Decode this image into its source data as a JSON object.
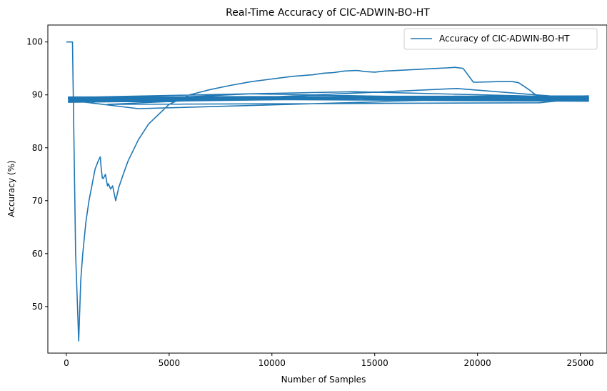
{
  "chart_data": {
    "type": "line",
    "title": "Real-Time Accuracy of CIC-ADWIN-BO-HT",
    "xlabel": "Number of Samples",
    "ylabel": "Accuracy (%)",
    "xlim": [
      -900,
      26300
    ],
    "ylim": [
      41.2,
      103.2
    ],
    "xticks": [
      0,
      5000,
      10000,
      15000,
      20000,
      25000
    ],
    "yticks": [
      50,
      60,
      70,
      80,
      90,
      100
    ],
    "grid": false,
    "legend": "top-right",
    "series": [
      {
        "name": "Accuracy of CIC-ADWIN-BO-HT",
        "color": "#1f77b4",
        "x": [
          0,
          250,
          300,
          450,
          600,
          700,
          800,
          950,
          1100,
          1250,
          1400,
          1550,
          1650,
          1700,
          1750,
          1800,
          1900,
          2000,
          2050,
          2150,
          2250,
          2400,
          2550,
          2750,
          3000,
          3500,
          4000,
          5000,
          6000,
          7000,
          8000,
          9000,
          10000,
          11000,
          12000,
          12500,
          13000,
          13500,
          14000,
          14200,
          14500,
          15000,
          15500,
          16000,
          16500,
          17000,
          17500,
          18000,
          18500,
          18900,
          19300,
          19800,
          20000,
          21000,
          21700,
          22000,
          22500,
          23000,
          23300,
          24000,
          25000,
          25400,
          19000,
          2000,
          23000,
          25400,
          100,
          3500,
          25400,
          100,
          9000,
          25400,
          100,
          14000,
          25400,
          100,
          25400,
          100,
          25400,
          100,
          25400,
          100,
          25400,
          100,
          25400
        ],
        "y": [
          100,
          100,
          100,
          60,
          43.5,
          55,
          60,
          66,
          70,
          73,
          76,
          77.5,
          78.3,
          76,
          74.3,
          74.2,
          75,
          72.8,
          73.2,
          72.2,
          72.8,
          70,
          72.5,
          74.8,
          77.5,
          81.5,
          84.5,
          88.2,
          90,
          91,
          91.8,
          92.5,
          93,
          93.5,
          93.8,
          94.1,
          94.2,
          94.5,
          94.6,
          94.6,
          94.4,
          94.3,
          94.5,
          94.6,
          94.7,
          94.8,
          94.9,
          95.0,
          95.1,
          95.2,
          95.0,
          92.4,
          92.4,
          92.5,
          92.5,
          92.3,
          91,
          89.5,
          89.2,
          89.2,
          89.1,
          89.2,
          91.2,
          88.2,
          88.5,
          89.4,
          89.0,
          87.4,
          89.8,
          88.6,
          90.2,
          89.0,
          89.5,
          90.6,
          89.5,
          89.4,
          89.6,
          88.8,
          89.5,
          89.2,
          89.8,
          89.6,
          88.8,
          89.3,
          89.3
        ]
      }
    ]
  }
}
